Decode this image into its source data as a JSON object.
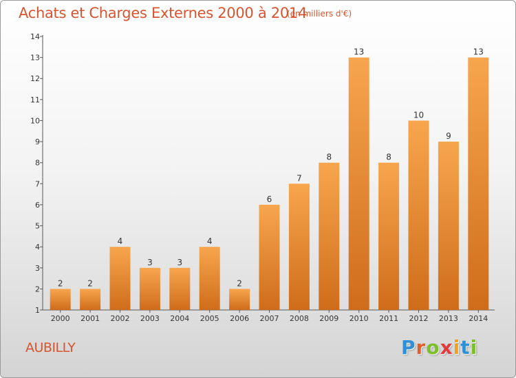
{
  "header": {
    "title": "Achats et Charges Externes 2000 à 2014",
    "subtitle": "(en milliers d'€)"
  },
  "footer": {
    "city": "AUBILLY",
    "brand_letters": [
      "P",
      "r",
      "o",
      "x",
      "i",
      "t",
      "i"
    ],
    "brand_colors": [
      "#2f8fd8",
      "#e0602a",
      "#7cbf2b",
      "#e23b3b",
      "#f2a11b",
      "#2f8fd8",
      "#7cbf2b"
    ]
  },
  "chart_data": {
    "type": "bar",
    "title": "Achats et Charges Externes 2000 à 2014",
    "subtitle": "(en milliers d'€)",
    "xlabel": "",
    "ylabel": "",
    "categories": [
      "2000",
      "2001",
      "2002",
      "2003",
      "2004",
      "2005",
      "2006",
      "2007",
      "2008",
      "2009",
      "2010",
      "2011",
      "2012",
      "2013",
      "2014"
    ],
    "values": [
      2,
      2,
      4,
      3,
      3,
      4,
      2,
      6,
      7,
      8,
      13,
      8,
      10,
      9,
      13
    ],
    "yticks": [
      "1",
      "2",
      "3",
      "4",
      "5",
      "6",
      "7",
      "8",
      "9",
      "10",
      "11",
      "12",
      "13",
      "14"
    ],
    "ylim": [
      1,
      14
    ],
    "grid": false,
    "bar_color": "#f5a04a",
    "bar_color_dark": "#d0701c"
  }
}
